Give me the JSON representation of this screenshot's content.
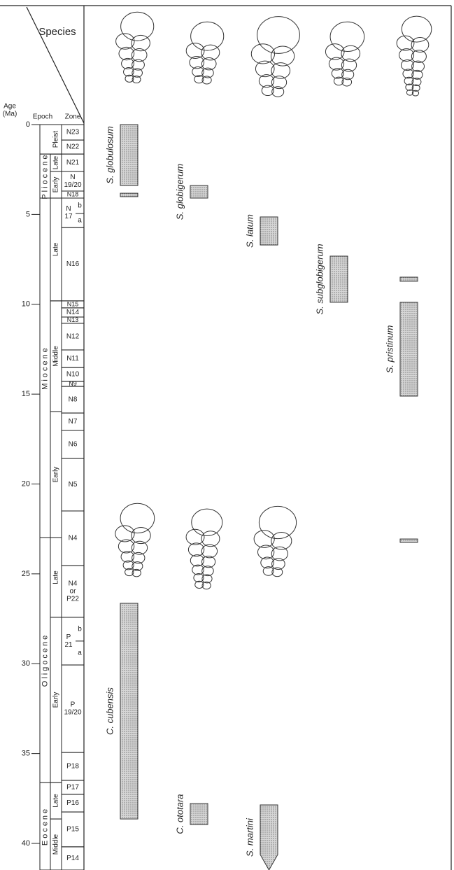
{
  "chart_data": {
    "type": "range",
    "header": "Species",
    "ylabel_lines": [
      "Age",
      "(Ma)"
    ],
    "epoch_header": "Epoch",
    "zone_header": "Zone",
    "ylim": [
      0,
      41.48
    ],
    "yticks": [
      0,
      5,
      10,
      15,
      20,
      25,
      30,
      35,
      40
    ],
    "bar_color": "#c4c4c4",
    "epochs": [
      {
        "label": "Pleist",
        "from": 0,
        "to": 1.64,
        "subs": []
      },
      {
        "label": "Pliocene",
        "from": 1.64,
        "to": 4.09,
        "subs": [
          {
            "label": "Late",
            "from": 1.64,
            "to": 2.61
          },
          {
            "label": "Early",
            "from": 2.61,
            "to": 4.09
          }
        ]
      },
      {
        "label": "Miocene",
        "from": 4.09,
        "to": 22.98,
        "subs": [
          {
            "label": "Late",
            "from": 4.09,
            "to": 9.81
          },
          {
            "label": "Middle",
            "from": 9.81,
            "to": 15.97
          },
          {
            "label": "Early",
            "from": 15.97,
            "to": 22.98
          }
        ]
      },
      {
        "label": "Oligocene",
        "from": 22.98,
        "to": 36.61,
        "subs": [
          {
            "label": "Late",
            "from": 22.98,
            "to": 27.42
          },
          {
            "label": "Early",
            "from": 27.42,
            "to": 36.61
          }
        ]
      },
      {
        "label": "Eocene",
        "from": 36.61,
        "to": 41.48,
        "subs": [
          {
            "label": "Late",
            "from": 36.61,
            "to": 38.64
          },
          {
            "label": "Middle",
            "from": 38.64,
            "to": 41.48
          }
        ]
      }
    ],
    "zones": [
      {
        "lines": [
          "N23"
        ],
        "from": 0,
        "to": 0.86,
        "subs": []
      },
      {
        "lines": [
          "N22"
        ],
        "from": 0.86,
        "to": 1.64,
        "subs": []
      },
      {
        "lines": [
          "N21"
        ],
        "from": 1.64,
        "to": 2.61,
        "subs": []
      },
      {
        "lines": [
          "N",
          "19/20"
        ],
        "from": 2.61,
        "to": 3.7,
        "subs": []
      },
      {
        "lines": [
          "N18"
        ],
        "from": 3.7,
        "to": 4.09,
        "subs": []
      },
      {
        "lines": [
          "N",
          "17"
        ],
        "from": 4.09,
        "to": 5.73,
        "subs": [
          {
            "label": "b",
            "from": 4.09,
            "to": 4.95
          },
          {
            "label": "a",
            "from": 4.95,
            "to": 5.73
          }
        ]
      },
      {
        "lines": [
          "N16"
        ],
        "from": 5.73,
        "to": 9.81,
        "subs": []
      },
      {
        "lines": [
          "N15"
        ],
        "from": 9.81,
        "to": 10.2,
        "subs": []
      },
      {
        "lines": [
          "N14"
        ],
        "from": 10.2,
        "to": 10.71,
        "subs": []
      },
      {
        "lines": [
          "N13"
        ],
        "from": 10.71,
        "to": 11.06,
        "subs": []
      },
      {
        "lines": [
          "N12"
        ],
        "from": 11.06,
        "to": 12.54,
        "subs": []
      },
      {
        "lines": [
          "N11"
        ],
        "from": 12.54,
        "to": 13.52,
        "subs": []
      },
      {
        "lines": [
          "N10"
        ],
        "from": 13.52,
        "to": 14.29,
        "subs": []
      },
      {
        "lines": [
          "N9"
        ],
        "from": 14.29,
        "to": 14.57,
        "subs": []
      },
      {
        "lines": [
          "N8"
        ],
        "from": 14.57,
        "to": 16.05,
        "subs": []
      },
      {
        "lines": [
          "N7"
        ],
        "from": 16.05,
        "to": 17.02,
        "subs": []
      },
      {
        "lines": [
          "N6"
        ],
        "from": 17.02,
        "to": 18.58,
        "subs": []
      },
      {
        "lines": [
          "N5"
        ],
        "from": 18.58,
        "to": 21.5,
        "subs": []
      },
      {
        "lines": [
          "N4"
        ],
        "from": 21.5,
        "to": 24.54,
        "subs": []
      },
      {
        "lines": [
          "N4",
          "or",
          "P22"
        ],
        "from": 24.54,
        "to": 27.42,
        "subs": []
      },
      {
        "lines": [
          "P",
          "21"
        ],
        "from": 27.42,
        "to": 30.07,
        "subs": [
          {
            "label": "b",
            "from": 27.42,
            "to": 28.74
          },
          {
            "label": "a",
            "from": 28.74,
            "to": 30.07
          }
        ]
      },
      {
        "lines": [
          "P",
          "19/20"
        ],
        "from": 30.07,
        "to": 34.94,
        "subs": []
      },
      {
        "lines": [
          "P18"
        ],
        "from": 34.94,
        "to": 36.49,
        "subs": []
      },
      {
        "lines": [
          "P17"
        ],
        "from": 36.49,
        "to": 37.27,
        "subs": []
      },
      {
        "lines": [
          "P16"
        ],
        "from": 37.27,
        "to": 38.25,
        "subs": []
      },
      {
        "lines": [
          "P15"
        ],
        "from": 38.25,
        "to": 40.19,
        "subs": []
      },
      {
        "lines": [
          "P14"
        ],
        "from": 40.19,
        "to": 41.48,
        "subs": []
      }
    ],
    "series": [
      {
        "name": "S. globulosum",
        "ranges": [
          [
            0,
            3.39
          ],
          [
            3.82,
            4.01
          ]
        ],
        "continues": false
      },
      {
        "name": "S. globigerum",
        "ranges": [
          [
            3.39,
            4.09
          ]
        ],
        "continues": false
      },
      {
        "name": "S. latum",
        "ranges": [
          [
            5.14,
            6.7
          ]
        ],
        "continues": false
      },
      {
        "name": "S. subglobigerum",
        "ranges": [
          [
            7.32,
            9.89
          ]
        ],
        "continues": false
      },
      {
        "name": "S. pristinum",
        "ranges": [
          [
            8.49,
            8.72
          ],
          [
            9.89,
            15.11
          ],
          [
            23.06,
            23.25
          ]
        ],
        "continues": false
      },
      {
        "name": "C. cubensis",
        "ranges": [
          [
            26.64,
            38.64
          ]
        ],
        "continues": false
      },
      {
        "name": "C. ototara",
        "ranges": [
          [
            37.78,
            38.95
          ]
        ],
        "continues": false
      },
      {
        "name": "S. martini",
        "ranges": [
          [
            37.86,
            41.48
          ]
        ],
        "continues": true
      }
    ]
  }
}
